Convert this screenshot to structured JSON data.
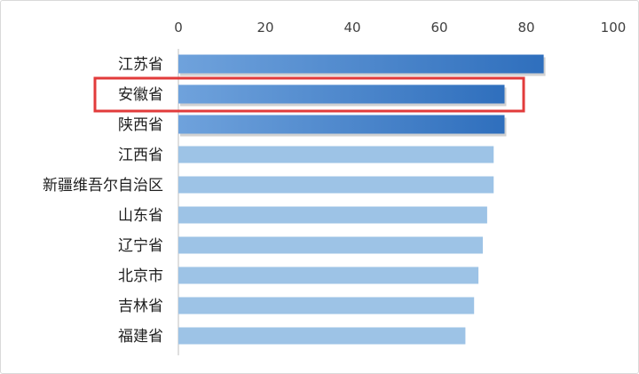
{
  "chart_data": {
    "type": "bar",
    "orientation": "horizontal",
    "title": "",
    "xlabel": "",
    "ylabel": "",
    "xlim": [
      0,
      100
    ],
    "x_ticks": [
      0,
      20,
      40,
      60,
      80,
      100
    ],
    "x_axis_position": "top",
    "grid": false,
    "legend": "none",
    "categories": [
      "江苏省",
      "安徽省",
      "陕西省",
      "江西省",
      "新疆维吾尔自治区",
      "山东省",
      "辽宁省",
      "北京市",
      "吉林省",
      "福建省"
    ],
    "values": [
      84,
      75,
      75,
      72.5,
      72.5,
      71,
      70,
      69,
      68,
      66
    ],
    "emphasized_categories": [
      "江苏省",
      "安徽省",
      "陕西省"
    ],
    "highlighted_category": "安徽省",
    "colors": {
      "emphasized_bar": "#3a78c2",
      "emphasized_bar_light": "#6fa2dc",
      "regular_bar": "#9dc3e6",
      "highlight_box": "#e23b3b",
      "axis": "#bfbfbf"
    }
  }
}
